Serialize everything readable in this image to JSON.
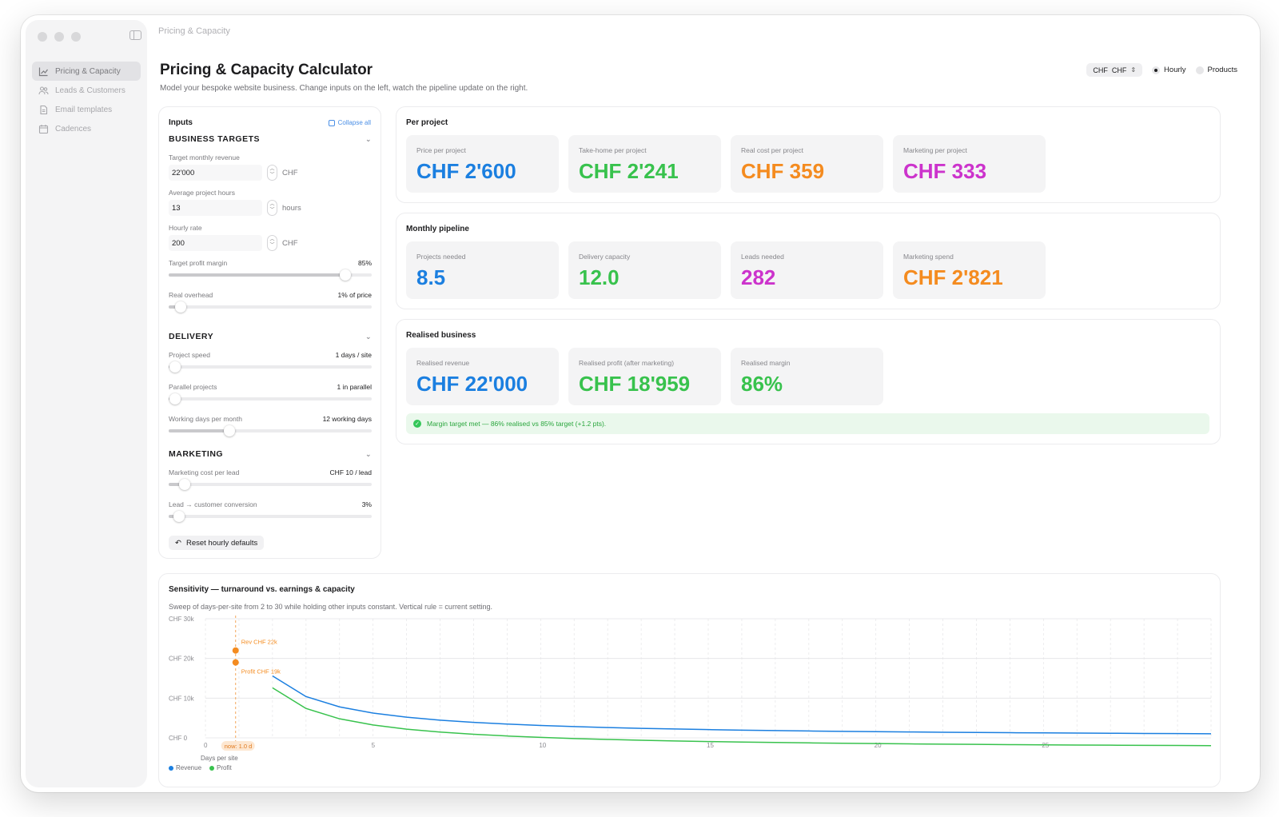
{
  "window": {
    "breadcrumb": "Pricing & Capacity"
  },
  "sidebar": {
    "items": [
      {
        "label": "Pricing & Capacity",
        "icon": "chart-line-icon",
        "active": true
      },
      {
        "label": "Leads & Customers",
        "icon": "people-icon",
        "active": false
      },
      {
        "label": "Email templates",
        "icon": "document-icon",
        "active": false
      },
      {
        "label": "Cadences",
        "icon": "calendar-icon",
        "active": false
      }
    ]
  },
  "header": {
    "title": "Pricing & Capacity Calculator",
    "subtitle": "Model your bespoke website business. Change inputs on the left, watch the pipeline update on the right.",
    "currency_label": "CHF",
    "currency_value": "CHF",
    "mode_hourly": "Hourly",
    "mode_products": "Products",
    "selected_mode": "Hourly"
  },
  "inputs": {
    "title": "Inputs",
    "collapse_label": "Collapse all",
    "business": {
      "title": "BUSINESS TARGETS",
      "revenue_label": "Target monthly revenue",
      "revenue_value": "22'000",
      "revenue_unit": "CHF",
      "hours_label": "Average project hours",
      "hours_value": "13",
      "hours_unit": "hours",
      "rate_label": "Hourly rate",
      "rate_value": "200",
      "rate_unit": "CHF",
      "margin_label": "Target profit margin",
      "margin_value": "85%",
      "margin_fraction": 0.87,
      "overhead_label": "Real overhead",
      "overhead_value": "1% of price",
      "overhead_fraction": 0.06
    },
    "delivery": {
      "title": "DELIVERY",
      "speed_label": "Project speed",
      "speed_value": "1 days / site",
      "speed_fraction": 0.03,
      "parallel_label": "Parallel projects",
      "parallel_value": "1 in parallel",
      "parallel_fraction": 0.03,
      "days_label": "Working days per month",
      "days_value": "12 working days",
      "days_fraction": 0.3
    },
    "marketing": {
      "title": "MARKETING",
      "cpl_label": "Marketing cost per lead",
      "cpl_value": "CHF 10 / lead",
      "cpl_fraction": 0.08,
      "conv_label": "Lead → customer conversion",
      "conv_value": "3%",
      "conv_fraction": 0.05
    },
    "reset_label": "Reset hourly defaults"
  },
  "per_project": {
    "title": "Per project",
    "cards": [
      {
        "label": "Price per project",
        "value": "CHF 2'600",
        "color": "#1b7fe0"
      },
      {
        "label": "Take-home per project",
        "value": "CHF 2'241",
        "color": "#38c24d"
      },
      {
        "label": "Real cost per project",
        "value": "CHF 359",
        "color": "#f48b1f"
      },
      {
        "label": "Marketing per project",
        "value": "CHF 333",
        "color": "#cc33cc"
      }
    ]
  },
  "pipeline": {
    "title": "Monthly pipeline",
    "cards": [
      {
        "label": "Projects needed",
        "value": "8.5",
        "color": "#1b7fe0"
      },
      {
        "label": "Delivery capacity",
        "value": "12.0",
        "color": "#38c24d"
      },
      {
        "label": "Leads needed",
        "value": "282",
        "color": "#cc33cc"
      },
      {
        "label": "Marketing spend",
        "value": "CHF 2'821",
        "color": "#f48b1f"
      }
    ]
  },
  "realised": {
    "title": "Realised business",
    "cards": [
      {
        "label": "Realised revenue",
        "value": "CHF 22'000",
        "color": "#1b7fe0"
      },
      {
        "label": "Realised profit (after marketing)",
        "value": "CHF 18'959",
        "color": "#38c24d"
      },
      {
        "label": "Realised margin",
        "value": "86%",
        "color": "#38c24d"
      }
    ],
    "note": "Margin target met — 86% realised vs 85% target (+1.2 pts)."
  },
  "sensitivity": {
    "title": "Sensitivity — turnaround vs. earnings & capacity",
    "description": "Sweep of days-per-site from 2 to 30 while holding other inputs constant. Vertical rule = current setting."
  },
  "chart_data": {
    "type": "line",
    "xlabel": "Days per site",
    "ylabel": "",
    "xlim": [
      0,
      30
    ],
    "ylim": [
      0,
      30000
    ],
    "x_ticks": [
      "0",
      "5",
      "10",
      "15",
      "20",
      "25"
    ],
    "y_ticks": [
      "CHF 0",
      "CHF 10k",
      "CHF 20k",
      "CHF 30k"
    ],
    "x_tick_values": [
      0,
      5,
      10,
      15,
      20,
      25
    ],
    "y_tick_values": [
      0,
      10000,
      20000,
      30000
    ],
    "x": [
      2,
      3,
      4,
      5,
      6,
      7,
      8,
      9,
      10,
      11,
      12,
      13,
      14,
      15,
      16,
      17,
      18,
      19,
      20,
      21,
      22,
      23,
      24,
      25,
      26,
      27,
      28,
      29,
      30
    ],
    "series": [
      {
        "name": "Revenue",
        "color": "#1b7fe0",
        "values": [
          15600,
          10400,
          7800,
          6240,
          5200,
          4457,
          3900,
          3467,
          3120,
          2836,
          2600,
          2400,
          2229,
          2080,
          1950,
          1835,
          1733,
          1642,
          1560,
          1486,
          1418,
          1357,
          1300,
          1248,
          1200,
          1156,
          1114,
          1076,
          1040
        ]
      },
      {
        "name": "Profit",
        "color": "#38c24d",
        "values": [
          12600,
          7400,
          4800,
          3240,
          2200,
          1457,
          900,
          467,
          120,
          -164,
          -400,
          -600,
          -771,
          -920,
          -1050,
          -1165,
          -1267,
          -1358,
          -1440,
          -1514,
          -1582,
          -1643,
          -1700,
          -1752,
          -1800,
          -1844,
          -1886,
          -1924,
          -1960
        ]
      }
    ],
    "current": {
      "x": 0.9,
      "label": "now: 1.0 d",
      "revenue_label": "Rev CHF 22k",
      "profit_label": "Profit CHF 19k",
      "revenue": 22000,
      "profit": 19000
    },
    "legend": "bottom-left",
    "grid": true
  }
}
